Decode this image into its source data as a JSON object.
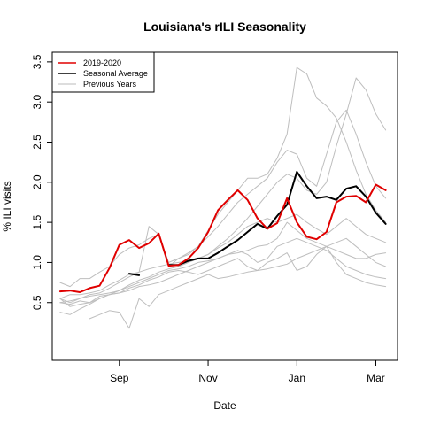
{
  "chart_data": {
    "type": "line",
    "title": "Louisiana's rILI Seasonality",
    "xlabel": "Date",
    "ylabel": "% ILI visits",
    "xlim": [
      1,
      34
    ],
    "ylim": [
      0,
      3.5
    ],
    "x_ticks": [
      {
        "pos": 7,
        "label": "Sep"
      },
      {
        "pos": 16,
        "label": "Nov"
      },
      {
        "pos": 25,
        "label": "Jan"
      },
      {
        "pos": 33,
        "label": "Mar"
      }
    ],
    "y_ticks": [
      0.5,
      1.0,
      1.5,
      2.0,
      2.5,
      3.0,
      3.5
    ],
    "y_tick_labels": [
      "0.5",
      "1.0",
      "1.5",
      "2.0",
      "2.5",
      "3.0",
      "3.5"
    ],
    "legend": {
      "placement": "top-left",
      "entries": [
        {
          "label": "2019-2020",
          "color": "#e00000"
        },
        {
          "label": "Seasonal Average",
          "color": "#000000"
        },
        {
          "label": "Previous Years",
          "color": "#bbbbbb"
        }
      ]
    },
    "series": [
      {
        "role": "previous",
        "color": "#bebebe",
        "x": [
          1,
          2,
          3,
          4,
          5,
          6,
          7,
          8,
          9,
          10,
          11,
          12,
          13,
          14,
          15,
          16,
          17,
          18,
          19,
          20,
          21,
          22,
          23,
          24,
          25,
          26,
          27,
          28,
          29,
          30,
          31,
          32,
          33,
          34
        ],
        "values": [
          0.75,
          0.7,
          0.8,
          0.8,
          0.88,
          0.95,
          1.1,
          1.18,
          1.22,
          1.3,
          1.35,
          1.0,
          1.05,
          1.12,
          1.2,
          1.4,
          1.6,
          1.75,
          1.9,
          2.05,
          2.05,
          2.1,
          2.3,
          2.6,
          3.43,
          3.35,
          3.05,
          2.95,
          2.8,
          2.5,
          2.15,
          1.85,
          1.65,
          1.5
        ]
      },
      {
        "role": "previous",
        "color": "#bebebe",
        "x": [
          1,
          2,
          3,
          4,
          5,
          6,
          7,
          8,
          9,
          10,
          11,
          12,
          13,
          14,
          15,
          16,
          17,
          18,
          19,
          20,
          21,
          22,
          23,
          24,
          25,
          26,
          27,
          28,
          29,
          30,
          31,
          32,
          33,
          34
        ],
        "values": [
          0.55,
          0.6,
          0.6,
          0.62,
          0.65,
          0.72,
          0.78,
          0.85,
          0.88,
          0.92,
          0.95,
          0.98,
          1.0,
          1.02,
          1.05,
          1.1,
          1.2,
          1.3,
          1.42,
          1.55,
          1.7,
          1.85,
          2.0,
          2.1,
          2.05,
          1.9,
          1.85,
          2.0,
          2.45,
          2.85,
          3.3,
          3.15,
          2.85,
          2.65
        ]
      },
      {
        "role": "previous",
        "color": "#bebebe",
        "x": [
          1,
          2,
          3,
          4,
          5,
          6,
          7,
          8,
          9,
          10,
          11,
          12,
          13,
          14,
          15,
          16,
          17,
          18,
          19,
          20,
          21,
          22,
          23,
          24,
          25,
          26,
          27,
          28,
          29,
          30,
          31,
          32,
          33,
          34
        ],
        "values": [
          0.5,
          0.52,
          0.55,
          0.6,
          0.62,
          0.68,
          0.75,
          0.82,
          0.88,
          1.45,
          1.35,
          0.95,
          1.05,
          1.1,
          1.2,
          1.32,
          1.45,
          1.6,
          1.75,
          1.85,
          1.95,
          2.05,
          2.25,
          2.4,
          2.35,
          2.05,
          1.95,
          2.35,
          2.75,
          2.9,
          2.6,
          2.25,
          1.95,
          1.8
        ]
      },
      {
        "role": "previous",
        "color": "#bebebe",
        "x": [
          1,
          2,
          3,
          4,
          5,
          6,
          7,
          8,
          9,
          10,
          11,
          12,
          13,
          14,
          15,
          16,
          17,
          18,
          19,
          20,
          21,
          22,
          23,
          24,
          25,
          26,
          27,
          28,
          29,
          30,
          31,
          32,
          33,
          34
        ],
        "values": [
          0.55,
          0.45,
          0.48,
          0.5,
          0.58,
          0.6,
          0.65,
          0.72,
          0.78,
          0.82,
          0.88,
          0.92,
          0.95,
          1.0,
          1.05,
          1.1,
          1.18,
          1.25,
          1.35,
          1.45,
          1.5,
          1.55,
          1.5,
          1.55,
          1.6,
          1.5,
          1.42,
          1.35,
          1.45,
          1.55,
          1.45,
          1.35,
          1.3,
          1.25
        ]
      },
      {
        "role": "previous",
        "color": "#bebebe",
        "x": [
          1,
          2,
          3,
          4,
          5,
          6,
          7,
          8,
          9,
          10,
          11,
          12,
          13,
          14,
          15,
          16,
          17,
          18,
          19,
          20,
          21,
          22,
          23,
          24,
          25,
          26,
          27,
          28,
          29,
          30,
          31,
          32,
          33,
          34
        ],
        "values": [
          0.5,
          0.48,
          0.52,
          0.5,
          0.55,
          0.6,
          0.62,
          0.65,
          0.7,
          0.72,
          0.75,
          0.8,
          0.85,
          0.9,
          0.95,
          1.0,
          1.05,
          1.1,
          1.15,
          1.1,
          1.0,
          1.05,
          1.2,
          1.25,
          1.3,
          1.25,
          1.2,
          1.15,
          1.05,
          0.95,
          0.9,
          0.85,
          0.82,
          0.8
        ]
      },
      {
        "role": "previous",
        "color": "#bebebe",
        "x": [
          1,
          2,
          3,
          4,
          5,
          6,
          7,
          8,
          9,
          10,
          11,
          12,
          13,
          14,
          15,
          16,
          17,
          18,
          19,
          20,
          21,
          22,
          23,
          24,
          25,
          26,
          27,
          28,
          29,
          30,
          31,
          32,
          33,
          34
        ],
        "values": [
          0.55,
          0.5,
          0.55,
          0.58,
          0.6,
          0.62,
          0.65,
          0.7,
          0.75,
          0.8,
          0.85,
          0.9,
          0.92,
          0.95,
          1.0,
          1.02,
          1.05,
          1.1,
          1.12,
          1.15,
          1.2,
          1.22,
          1.3,
          1.5,
          1.4,
          1.3,
          1.25,
          1.2,
          1.15,
          1.1,
          1.05,
          1.05,
          1.1,
          1.12
        ]
      },
      {
        "role": "previous",
        "color": "#bebebe",
        "x": [
          1,
          2,
          3,
          4,
          5,
          6,
          7,
          8,
          9,
          10,
          11,
          12,
          13,
          14,
          15,
          16,
          17,
          18,
          19,
          20,
          21,
          22,
          23,
          24,
          25,
          26,
          27,
          28,
          29,
          30,
          31,
          32,
          33,
          34
        ],
        "values": [
          0.38,
          0.35,
          0.42,
          0.48,
          0.55,
          0.6,
          0.62,
          0.68,
          0.72,
          0.78,
          0.82,
          0.88,
          0.9,
          0.88,
          0.85,
          0.9,
          0.95,
          1.0,
          1.05,
          0.95,
          0.9,
          1.0,
          1.05,
          1.12,
          0.9,
          0.95,
          1.1,
          1.2,
          1.0,
          0.85,
          0.8,
          0.75,
          0.72,
          0.7
        ]
      },
      {
        "role": "previous",
        "color": "#bebebe",
        "x": [
          4,
          5,
          6,
          7,
          8,
          9,
          10,
          11,
          12,
          13,
          14,
          15,
          16,
          17,
          18,
          19,
          20,
          21,
          22,
          23,
          24,
          25,
          26,
          27,
          28,
          29,
          30,
          31,
          32,
          33,
          34
        ],
        "values": [
          0.3,
          0.35,
          0.4,
          0.38,
          0.18,
          0.55,
          0.45,
          0.6,
          0.65,
          0.7,
          0.75,
          0.8,
          0.85,
          0.8,
          0.82,
          0.85,
          0.88,
          0.9,
          0.92,
          0.95,
          0.98,
          1.05,
          1.1,
          1.15,
          1.2,
          1.25,
          1.3,
          1.2,
          1.1,
          1.0,
          0.95
        ]
      },
      {
        "role": "average",
        "color": "#000000",
        "x": [
          8,
          9,
          10,
          11,
          12,
          13,
          14,
          15,
          16,
          17,
          18,
          19,
          20,
          21,
          22,
          23,
          24,
          25,
          26,
          27,
          28,
          29,
          30,
          31,
          32,
          33,
          34
        ],
        "values": [
          0.86,
          0.84,
          null,
          null,
          0.97,
          0.97,
          1.02,
          1.05,
          1.05,
          1.12,
          1.2,
          1.28,
          1.38,
          1.48,
          1.42,
          1.58,
          1.72,
          2.13,
          1.95,
          1.8,
          1.82,
          1.78,
          1.92,
          1.95,
          1.82,
          1.62,
          1.48
        ]
      },
      {
        "role": "current",
        "color": "#e00000",
        "x": [
          1,
          2,
          3,
          4,
          5,
          6,
          7,
          8,
          9,
          10,
          11,
          12,
          13,
          14,
          15,
          16,
          17,
          18,
          19,
          20,
          21,
          22,
          23,
          24,
          25,
          26,
          27,
          28,
          29,
          30,
          31,
          32,
          33,
          34
        ],
        "values": [
          0.64,
          0.65,
          0.63,
          0.68,
          0.71,
          0.93,
          1.22,
          1.28,
          1.18,
          1.24,
          1.36,
          0.96,
          0.97,
          1.05,
          1.18,
          1.38,
          1.65,
          1.78,
          1.9,
          1.78,
          1.55,
          1.42,
          1.49,
          1.8,
          1.5,
          1.32,
          1.29,
          1.38,
          1.75,
          1.82,
          1.83,
          1.75,
          1.97,
          1.9
        ]
      }
    ]
  }
}
